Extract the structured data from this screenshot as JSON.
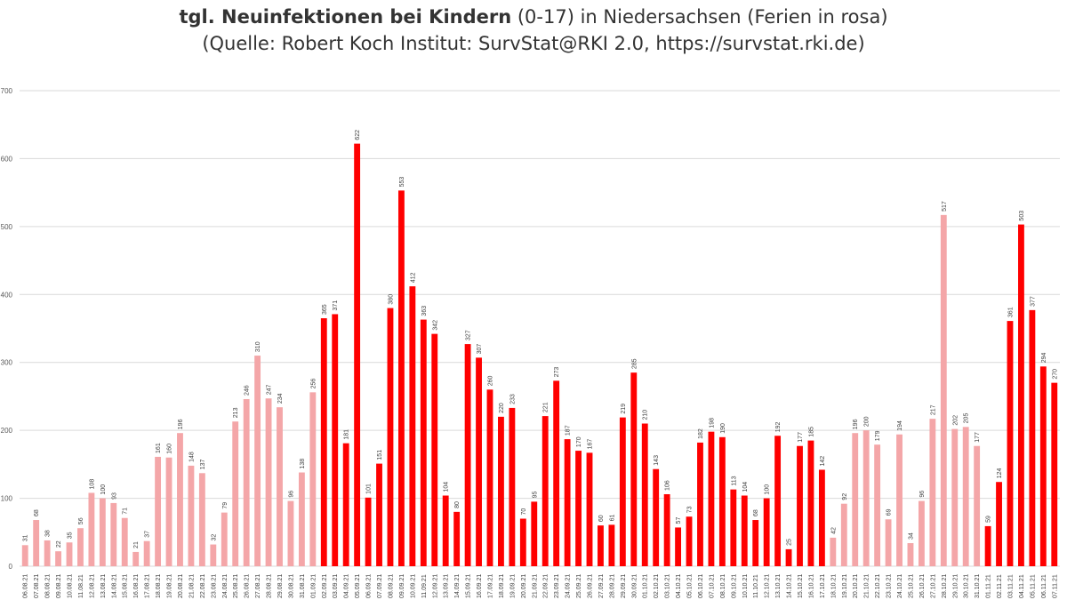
{
  "title": {
    "line1_bold": "tgl. Neuinfektionen bei Kindern",
    "line1_rest": " (0-17) in Niedersachsen (Ferien in rosa)",
    "line2": "(Quelle: Robert Koch Institut: SurvStat@RKI 2.0, https://survstat.rki.de)"
  },
  "colors": {
    "school": "#FF0000",
    "holiday": "#F4A6A8",
    "grid": "#D9D9D9"
  },
  "chart_data": {
    "type": "bar",
    "title": "tgl. Neuinfektionen bei Kindern (0-17) in Niedersachsen (Ferien in rosa)",
    "subtitle": "(Quelle: Robert Koch Institut: SurvStat@RKI 2.0, https://survstat.rki.de)",
    "xlabel": "",
    "ylabel": "",
    "ylim": [
      0,
      700
    ],
    "yticks": [
      0,
      100,
      200,
      300,
      400,
      500,
      600,
      700
    ],
    "grid": true,
    "categories": [
      "06.08.21",
      "07.08.21",
      "08.08.21",
      "09.08.21",
      "10.08.21",
      "11.08.21",
      "12.08.21",
      "13.08.21",
      "14.08.21",
      "15.08.21",
      "16.08.21",
      "17.08.21",
      "18.08.21",
      "19.08.21",
      "20.08.21",
      "21.08.21",
      "22.08.21",
      "23.08.21",
      "24.08.21",
      "25.08.21",
      "26.08.21",
      "27.08.21",
      "28.08.21",
      "29.08.21",
      "30.08.21",
      "31.08.21",
      "01.09.21",
      "02.09.21",
      "03.09.21",
      "04.09.21",
      "05.09.21",
      "06.09.21",
      "07.09.21",
      "08.09.21",
      "09.09.21",
      "10.09.21",
      "11.09.21",
      "12.09.21",
      "13.09.21",
      "14.09.21",
      "15.09.21",
      "16.09.21",
      "17.09.21",
      "18.09.21",
      "19.09.21",
      "20.09.21",
      "21.09.21",
      "22.09.21",
      "23.09.21",
      "24.09.21",
      "25.09.21",
      "26.09.21",
      "27.09.21",
      "28.09.21",
      "29.09.21",
      "30.09.21",
      "01.10.21",
      "02.10.21",
      "03.10.21",
      "04.10.21",
      "05.10.21",
      "06.10.21",
      "07.10.21",
      "08.10.21",
      "09.10.21",
      "10.10.21",
      "11.10.21",
      "12.10.21",
      "13.10.21",
      "14.10.21",
      "15.10.21",
      "16.10.21",
      "17.10.21",
      "18.10.21",
      "19.10.21",
      "20.10.21",
      "21.10.21",
      "22.10.21",
      "23.10.21",
      "24.10.21",
      "25.10.21",
      "26.10.21",
      "27.10.21",
      "28.10.21",
      "29.10.21",
      "30.10.21",
      "31.10.21",
      "01.11.21",
      "02.11.21",
      "03.11.21",
      "04.11.21",
      "05.11.21",
      "06.11.21",
      "07.11.21"
    ],
    "values": [
      31,
      68,
      38,
      22,
      35,
      56,
      108,
      100,
      93,
      71,
      21,
      37,
      161,
      160,
      196,
      148,
      137,
      32,
      79,
      213,
      246,
      310,
      247,
      234,
      96,
      138,
      256,
      365,
      371,
      181,
      622,
      101,
      151,
      380,
      553,
      412,
      363,
      342,
      104,
      80,
      327,
      307,
      260,
      220,
      233,
      70,
      95,
      221,
      273,
      187,
      170,
      167,
      60,
      61,
      219,
      285,
      210,
      143,
      106,
      57,
      73,
      182,
      198,
      190,
      113,
      104,
      68,
      100,
      192,
      25,
      177,
      185,
      142,
      42,
      92,
      196,
      200,
      179,
      69,
      194,
      34,
      96,
      217,
      517,
      202,
      205,
      177,
      59,
      124,
      361,
      503,
      377,
      294,
      270
    ],
    "holiday": [
      true,
      true,
      true,
      true,
      true,
      true,
      true,
      true,
      true,
      true,
      true,
      true,
      true,
      true,
      true,
      true,
      true,
      true,
      true,
      true,
      true,
      true,
      true,
      true,
      true,
      true,
      true,
      false,
      false,
      false,
      false,
      false,
      false,
      false,
      false,
      false,
      false,
      false,
      false,
      false,
      false,
      false,
      false,
      false,
      false,
      false,
      false,
      false,
      false,
      false,
      false,
      false,
      false,
      false,
      false,
      false,
      false,
      false,
      false,
      false,
      false,
      false,
      false,
      false,
      false,
      false,
      false,
      false,
      false,
      false,
      false,
      false,
      false,
      true,
      true,
      true,
      true,
      true,
      true,
      true,
      true,
      true,
      true,
      true,
      true,
      true,
      true,
      false,
      false,
      false,
      false,
      false,
      false,
      false
    ]
  }
}
